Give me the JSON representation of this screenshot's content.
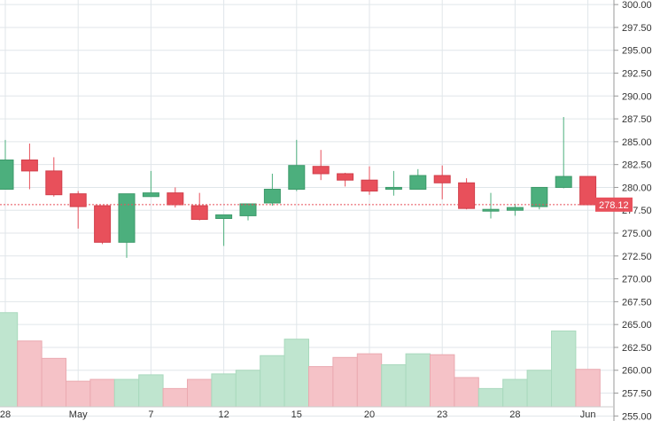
{
  "chart_data": {
    "type": "candlestick",
    "y_axis": {
      "position": "right",
      "range": [
        256.0,
        300.5
      ],
      "ticks": [
        "300.00",
        "297.50",
        "295.00",
        "292.50",
        "290.00",
        "287.50",
        "285.00",
        "282.50",
        "280.00",
        "277.50",
        "275.00",
        "272.50",
        "270.00",
        "267.50",
        "265.00",
        "262.50",
        "260.00",
        "257.50",
        "255.00"
      ],
      "tick_values": [
        300.0,
        297.5,
        295.0,
        292.5,
        290.0,
        287.5,
        285.0,
        282.5,
        280.0,
        277.5,
        275.0,
        272.5,
        270.0,
        267.5,
        265.0,
        262.5,
        260.0,
        257.5,
        255.0
      ]
    },
    "x_axis": {
      "ticks": [
        {
          "label": "28",
          "index": 0
        },
        {
          "label": "May",
          "index": 3
        },
        {
          "label": "7",
          "index": 6
        },
        {
          "label": "12",
          "index": 9
        },
        {
          "label": "15",
          "index": 12
        },
        {
          "label": "20",
          "index": 15
        },
        {
          "label": "23",
          "index": 18
        },
        {
          "label": "28",
          "index": 21
        },
        {
          "label": "Jun",
          "index": 24
        }
      ]
    },
    "grid": true,
    "last_price": {
      "value": 278.12,
      "label": "278.12"
    },
    "colors": {
      "up": "#4caf7d",
      "down": "#e8505b",
      "up_volume": "#bfe5cf",
      "down_volume": "#f5c2c7",
      "grid": "#e0e6ea",
      "last_price": "#e8505b"
    },
    "candles": [
      {
        "open": 279.8,
        "high": 285.2,
        "low": 279.8,
        "close": 283.0
      },
      {
        "open": 283.0,
        "high": 284.8,
        "low": 279.8,
        "close": 281.8
      },
      {
        "open": 281.8,
        "high": 283.3,
        "low": 279.0,
        "close": 279.2
      },
      {
        "open": 279.3,
        "high": 279.6,
        "low": 275.5,
        "close": 277.9
      },
      {
        "open": 278.0,
        "high": 278.0,
        "low": 273.8,
        "close": 274.0
      },
      {
        "open": 274.0,
        "high": 279.3,
        "low": 272.3,
        "close": 279.3
      },
      {
        "open": 279.0,
        "high": 281.8,
        "low": 279.0,
        "close": 279.4
      },
      {
        "open": 279.4,
        "high": 280.0,
        "low": 277.8,
        "close": 278.1
      },
      {
        "open": 278.0,
        "high": 279.4,
        "low": 276.4,
        "close": 276.5
      },
      {
        "open": 276.6,
        "high": 277.0,
        "low": 273.6,
        "close": 277.0
      },
      {
        "open": 276.9,
        "high": 278.2,
        "low": 276.4,
        "close": 278.2
      },
      {
        "open": 278.3,
        "high": 281.5,
        "low": 278.0,
        "close": 279.8
      },
      {
        "open": 279.8,
        "high": 285.2,
        "low": 279.6,
        "close": 282.4
      },
      {
        "open": 282.3,
        "high": 284.1,
        "low": 280.8,
        "close": 281.5
      },
      {
        "open": 281.5,
        "high": 281.6,
        "low": 280.1,
        "close": 280.8
      },
      {
        "open": 280.8,
        "high": 282.3,
        "low": 279.2,
        "close": 279.6
      },
      {
        "open": 279.8,
        "high": 281.8,
        "low": 279.1,
        "close": 280.0
      },
      {
        "open": 279.8,
        "high": 282.0,
        "low": 279.8,
        "close": 281.3
      },
      {
        "open": 281.3,
        "high": 282.4,
        "low": 278.7,
        "close": 280.5
      },
      {
        "open": 280.5,
        "high": 281.0,
        "low": 277.6,
        "close": 277.7
      },
      {
        "open": 277.6,
        "high": 279.4,
        "low": 276.6,
        "close": 277.6
      },
      {
        "open": 277.5,
        "high": 278.2,
        "low": 276.9,
        "close": 277.8
      },
      {
        "open": 277.9,
        "high": 280.0,
        "low": 277.6,
        "close": 280.0
      },
      {
        "open": 280.0,
        "high": 287.7,
        "low": 279.9,
        "close": 281.2
      },
      {
        "open": 281.2,
        "high": 281.2,
        "low": 278.1,
        "close": 278.1
      }
    ],
    "volume": {
      "price_scale_range": [
        255.0,
        266.5
      ],
      "bars": [
        266.3,
        263.2,
        261.3,
        258.8,
        259.0,
        259.0,
        259.5,
        258.0,
        259.0,
        259.6,
        260.0,
        261.6,
        263.4,
        260.4,
        261.4,
        261.8,
        260.6,
        261.8,
        261.7,
        259.2,
        258.0,
        259.0,
        260.0,
        264.3,
        260.1
      ]
    }
  }
}
